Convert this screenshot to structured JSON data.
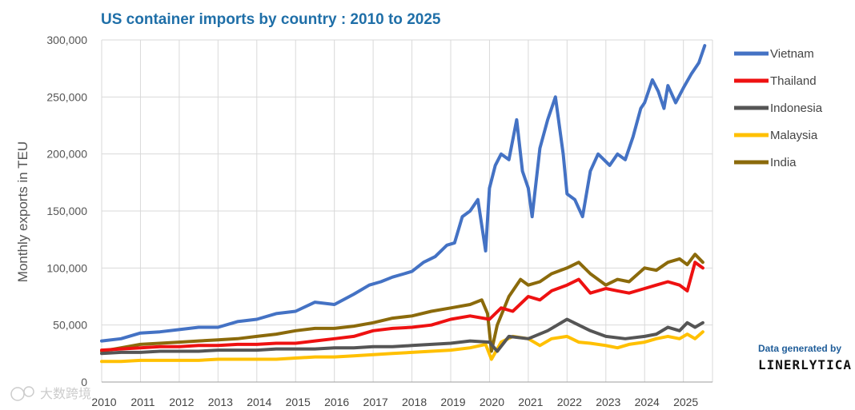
{
  "chart_data": {
    "type": "line",
    "title": "US container imports by country : 2010 to 2025",
    "xlabel": "",
    "ylabel": "Monthly exports in TEU",
    "ylim": [
      0,
      300000
    ],
    "y_ticks": [
      "0",
      "50,000",
      "100,000",
      "150,000",
      "200,000",
      "250,000",
      "300,000"
    ],
    "x_ticks": [
      "2010",
      "2011",
      "2012",
      "2013",
      "2014",
      "2015",
      "2016",
      "2017",
      "2018",
      "2019",
      "2020",
      "2021",
      "2022",
      "2023",
      "2024",
      "2025"
    ],
    "x_range": [
      2010,
      2025.75
    ],
    "grid": true,
    "legend_position": "right",
    "series": [
      {
        "name": "Vietnam",
        "color": "#4472c4",
        "x": [
          2010.0,
          2010.5,
          2011.0,
          2011.5,
          2012.0,
          2012.5,
          2013.0,
          2013.5,
          2014.0,
          2014.5,
          2015.0,
          2015.5,
          2016.0,
          2016.5,
          2016.9,
          2017.2,
          2017.5,
          2017.8,
          2018.0,
          2018.3,
          2018.6,
          2018.9,
          2019.1,
          2019.3,
          2019.5,
          2019.7,
          2019.9,
          2020.0,
          2020.15,
          2020.3,
          2020.5,
          2020.7,
          2020.85,
          2021.0,
          2021.1,
          2021.3,
          2021.5,
          2021.7,
          2021.9,
          2022.0,
          2022.2,
          2022.4,
          2022.6,
          2022.8,
          2022.95,
          2023.1,
          2023.3,
          2023.5,
          2023.7,
          2023.9,
          2024.0,
          2024.2,
          2024.35,
          2024.5,
          2024.6,
          2024.8,
          2025.0,
          2025.2,
          2025.4,
          2025.55
        ],
        "values": [
          36000,
          38000,
          43000,
          44000,
          46000,
          48000,
          48000,
          53000,
          55000,
          60000,
          62000,
          70000,
          68000,
          77000,
          85000,
          88000,
          92000,
          95000,
          97000,
          105000,
          110000,
          120000,
          122000,
          145000,
          150000,
          160000,
          115000,
          170000,
          190000,
          200000,
          195000,
          230000,
          185000,
          170000,
          145000,
          205000,
          230000,
          250000,
          200000,
          165000,
          160000,
          145000,
          185000,
          200000,
          195000,
          190000,
          200000,
          195000,
          215000,
          240000,
          245000,
          265000,
          255000,
          240000,
          260000,
          245000,
          258000,
          270000,
          280000,
          295000
        ]
      },
      {
        "name": "Thailand",
        "color": "#ee1111",
        "x": [
          2010.0,
          2010.5,
          2011.0,
          2011.5,
          2012.0,
          2012.5,
          2013.0,
          2013.5,
          2014.0,
          2014.5,
          2015.0,
          2015.5,
          2016.0,
          2016.5,
          2017.0,
          2017.5,
          2018.0,
          2018.5,
          2019.0,
          2019.5,
          2020.0,
          2020.3,
          2020.6,
          2021.0,
          2021.3,
          2021.6,
          2022.0,
          2022.3,
          2022.6,
          2023.0,
          2023.3,
          2023.6,
          2024.0,
          2024.3,
          2024.6,
          2024.9,
          2025.1,
          2025.3,
          2025.5
        ],
        "values": [
          28000,
          29000,
          30000,
          31000,
          31000,
          32000,
          32000,
          33000,
          33000,
          34000,
          34000,
          36000,
          38000,
          40000,
          45000,
          47000,
          48000,
          50000,
          55000,
          58000,
          55000,
          65000,
          62000,
          75000,
          72000,
          80000,
          85000,
          90000,
          78000,
          82000,
          80000,
          78000,
          82000,
          85000,
          88000,
          85000,
          80000,
          105000,
          100000
        ]
      },
      {
        "name": "Indonesia",
        "color": "#555555",
        "x": [
          2010.0,
          2010.5,
          2011.0,
          2011.5,
          2012.0,
          2012.5,
          2013.0,
          2013.5,
          2014.0,
          2014.5,
          2015.0,
          2015.5,
          2016.0,
          2016.5,
          2017.0,
          2017.5,
          2018.0,
          2018.5,
          2019.0,
          2019.5,
          2020.0,
          2020.2,
          2020.5,
          2021.0,
          2021.5,
          2022.0,
          2022.3,
          2022.6,
          2023.0,
          2023.5,
          2024.0,
          2024.3,
          2024.6,
          2024.9,
          2025.1,
          2025.3,
          2025.5
        ],
        "values": [
          25000,
          26000,
          26000,
          27000,
          27000,
          27000,
          28000,
          28000,
          28000,
          29000,
          29000,
          29000,
          30000,
          30000,
          31000,
          31000,
          32000,
          33000,
          34000,
          36000,
          35000,
          27000,
          40000,
          38000,
          45000,
          55000,
          50000,
          45000,
          40000,
          38000,
          40000,
          42000,
          48000,
          45000,
          52000,
          48000,
          52000
        ]
      },
      {
        "name": "Malaysia",
        "color": "#ffc000",
        "x": [
          2010.0,
          2010.5,
          2011.0,
          2011.5,
          2012.0,
          2012.5,
          2013.0,
          2013.5,
          2014.0,
          2014.5,
          2015.0,
          2015.5,
          2016.0,
          2016.5,
          2017.0,
          2017.5,
          2018.0,
          2018.5,
          2019.0,
          2019.5,
          2019.9,
          2020.05,
          2020.3,
          2020.6,
          2021.0,
          2021.3,
          2021.6,
          2022.0,
          2022.3,
          2022.6,
          2023.0,
          2023.3,
          2023.6,
          2024.0,
          2024.3,
          2024.6,
          2024.9,
          2025.1,
          2025.3,
          2025.5
        ],
        "values": [
          18000,
          18000,
          19000,
          19000,
          19000,
          19000,
          20000,
          20000,
          20000,
          20000,
          21000,
          22000,
          22000,
          23000,
          24000,
          25000,
          26000,
          27000,
          28000,
          30000,
          33000,
          20000,
          35000,
          40000,
          38000,
          32000,
          38000,
          40000,
          35000,
          34000,
          32000,
          30000,
          33000,
          35000,
          38000,
          40000,
          38000,
          42000,
          38000,
          44000
        ]
      },
      {
        "name": "India",
        "color": "#8b6a0b",
        "x": [
          2010.0,
          2010.5,
          2011.0,
          2011.5,
          2012.0,
          2012.5,
          2013.0,
          2013.5,
          2014.0,
          2014.5,
          2015.0,
          2015.5,
          2016.0,
          2016.5,
          2017.0,
          2017.5,
          2018.0,
          2018.5,
          2019.0,
          2019.5,
          2019.8,
          2019.95,
          2020.05,
          2020.2,
          2020.5,
          2020.8,
          2021.0,
          2021.3,
          2021.6,
          2022.0,
          2022.3,
          2022.6,
          2023.0,
          2023.3,
          2023.6,
          2024.0,
          2024.3,
          2024.6,
          2024.9,
          2025.1,
          2025.3,
          2025.5
        ],
        "values": [
          27000,
          30000,
          33000,
          34000,
          35000,
          36000,
          37000,
          38000,
          40000,
          42000,
          45000,
          47000,
          47000,
          49000,
          52000,
          56000,
          58000,
          62000,
          65000,
          68000,
          72000,
          60000,
          27000,
          50000,
          75000,
          90000,
          85000,
          88000,
          95000,
          100000,
          105000,
          95000,
          85000,
          90000,
          88000,
          100000,
          98000,
          105000,
          108000,
          103000,
          112000,
          105000
        ]
      }
    ]
  },
  "credit": {
    "line1": "Data generated by",
    "line2": "LINERLYTICA"
  },
  "watermark": "大数跨境",
  "colors": {
    "title": "#1f6fa8",
    "grid": "#d9d9d9"
  }
}
